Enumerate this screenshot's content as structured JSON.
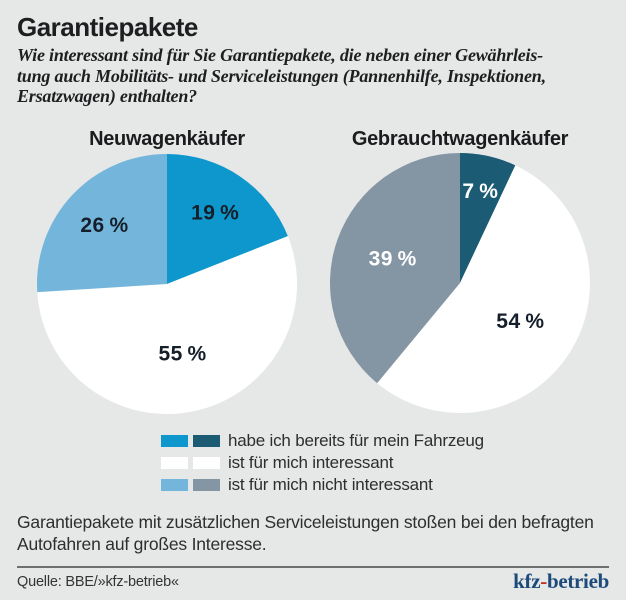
{
  "header": {
    "title": "Garantiepakete",
    "subtitle": "Wie interessant sind für Sie Garantiepakete, die neben einer Gewährleis-\ntung auch Mobilitäts- und Serviceleistungen (Pannenhilfe, Inspektionen,\nErsatzwagen) enthalten?"
  },
  "chart_data": [
    {
      "type": "pie",
      "title": "Neuwagenkäufer",
      "start_angle_deg": 0,
      "direction": "clockwise",
      "slices": [
        {
          "label": "habe ich bereits für mein Fahrzeug",
          "value": 19,
          "display": "19 %",
          "color": "#0e97cc",
          "label_color": "#151f29"
        },
        {
          "label": "ist für mich interessant",
          "value": 55,
          "display": "55 %",
          "color": "#ffffff",
          "label_color": "#151f29"
        },
        {
          "label": "ist für mich nicht interessant",
          "value": 26,
          "display": "26 %",
          "color": "#74b6db",
          "label_color": "#151f29"
        }
      ]
    },
    {
      "type": "pie",
      "title": "Gebrauchtwagenkäufer",
      "start_angle_deg": 0,
      "direction": "clockwise",
      "slices": [
        {
          "label": "habe ich bereits für mein Fahrzeug",
          "value": 7,
          "display": "7 %",
          "color": "#1b5b73",
          "label_color": "#ffffff"
        },
        {
          "label": "ist für mich interessant",
          "value": 54,
          "display": "54 %",
          "color": "#ffffff",
          "label_color": "#151f29"
        },
        {
          "label": "ist für mich nicht interessant",
          "value": 39,
          "display": "39 %",
          "color": "#8495a4",
          "label_color": "#ffffff"
        }
      ]
    }
  ],
  "legend": {
    "position": "bottom-center",
    "items": [
      {
        "colors": [
          "#0e97cc",
          "#1b5b73"
        ],
        "label": "habe ich bereits für mein Fahrzeug"
      },
      {
        "colors": [
          "#ffffff",
          "#ffffff"
        ],
        "label": "ist für mich interessant"
      },
      {
        "colors": [
          "#74b6db",
          "#8495a4"
        ],
        "label": "ist für mich nicht interessant"
      }
    ]
  },
  "footer": {
    "statement": "Garantiepakete mit zusätzlichen Serviceleistungen stoßen bei den befragten\nAutofahren auf großes Interesse.",
    "source": "Quelle: BBE/»kfz-betrieb«",
    "logo": {
      "part1": "kfz",
      "hyphen": "-",
      "part2": "betrieb"
    }
  },
  "style": {
    "background": "#e6e7e7",
    "logo_blue": "#1c4a7b",
    "logo_red": "#c03028",
    "dark_label": "#151f29"
  }
}
